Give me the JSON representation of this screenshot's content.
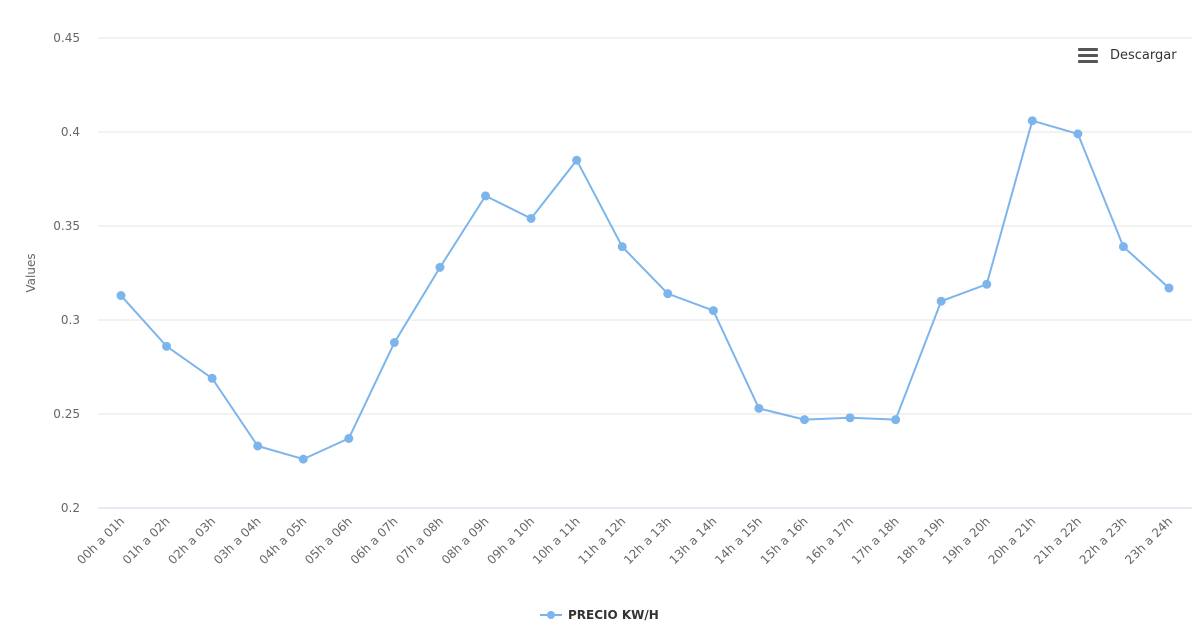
{
  "toolbar": {
    "menu_label": "Descargar",
    "menu_icon": "hamburger-icon"
  },
  "legend": {
    "label": "PRECIO KW/H",
    "color": "#7cb5ec"
  },
  "chart_data": {
    "type": "line",
    "title": "",
    "xlabel": "",
    "ylabel": "Values",
    "ylim": [
      0.2,
      0.45
    ],
    "yticks": [
      0.2,
      0.25,
      0.3,
      0.35,
      0.4,
      0.45
    ],
    "ytick_labels": [
      "0.2",
      "0.25",
      "0.3",
      "0.35",
      "0.4",
      "0.45"
    ],
    "grid": true,
    "legend_position": "bottom-center",
    "categories": [
      "00h a 01h",
      "01h a 02h",
      "02h a 03h",
      "03h a 04h",
      "04h a 05h",
      "05h a 06h",
      "06h a 07h",
      "07h a 08h",
      "08h a 09h",
      "09h a 10h",
      "10h a 11h",
      "11h a 12h",
      "12h a 13h",
      "13h a 14h",
      "14h a 15h",
      "15h a 16h",
      "16h a 17h",
      "17h a 18h",
      "18h a 19h",
      "19h a 20h",
      "20h a 21h",
      "21h a 22h",
      "22h a 23h",
      "23h a 24h"
    ],
    "series": [
      {
        "name": "PRECIO KW/H",
        "color": "#7cb5ec",
        "values": [
          0.313,
          0.286,
          0.269,
          0.233,
          0.226,
          0.237,
          0.288,
          0.328,
          0.366,
          0.354,
          0.385,
          0.339,
          0.314,
          0.305,
          0.253,
          0.247,
          0.248,
          0.247,
          0.31,
          0.319,
          0.406,
          0.399,
          0.339,
          0.317
        ]
      }
    ]
  }
}
